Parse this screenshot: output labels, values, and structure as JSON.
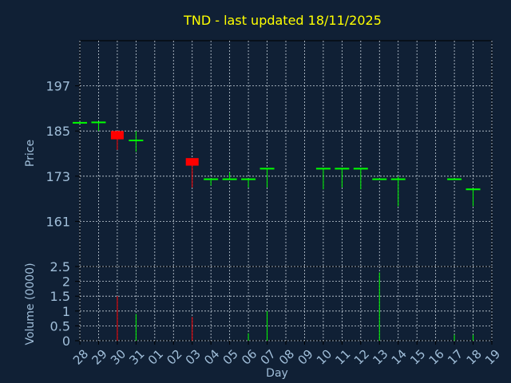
{
  "chart_data": [
    {
      "type": "candlestick",
      "title": "TND - last updated 18/11/2025",
      "xlabel": "Day",
      "ylabel": "Price",
      "grid": true,
      "ylim": [
        149,
        209
      ],
      "yticks": [
        161,
        173,
        185,
        197
      ],
      "categories": [
        "28",
        "29",
        "30",
        "31",
        "01",
        "02",
        "03",
        "04",
        "05",
        "06",
        "07",
        "08",
        "09",
        "10",
        "11",
        "12",
        "13",
        "14",
        "15",
        "16",
        "17",
        "18",
        "19"
      ],
      "candles": [
        {
          "day": "28",
          "open": 187.2,
          "high": 187.2,
          "low": 187.2,
          "close": 187.2
        },
        {
          "day": "29",
          "open": 187.3,
          "high": 187.3,
          "low": 185.0,
          "close": 187.3
        },
        {
          "day": "30",
          "open": 185.0,
          "high": 185.0,
          "low": 180.0,
          "close": 182.8
        },
        {
          "day": "31",
          "open": 182.5,
          "high": 185.0,
          "low": 179.5,
          "close": 182.5
        },
        {
          "day": "03",
          "open": 177.8,
          "high": 177.8,
          "low": 170.0,
          "close": 175.8
        },
        {
          "day": "04",
          "open": 172.2,
          "high": 172.2,
          "low": 170.5,
          "close": 172.2
        },
        {
          "day": "05",
          "open": 172.2,
          "high": 174.0,
          "low": 172.2,
          "close": 172.2
        },
        {
          "day": "06",
          "open": 172.2,
          "high": 172.2,
          "low": 170.0,
          "close": 172.2
        },
        {
          "day": "07",
          "open": 175.0,
          "high": 175.0,
          "low": 170.0,
          "close": 175.0
        },
        {
          "day": "10",
          "open": 175.0,
          "high": 175.0,
          "low": 169.5,
          "close": 175.0
        },
        {
          "day": "11",
          "open": 175.0,
          "high": 175.0,
          "low": 170.0,
          "close": 175.0
        },
        {
          "day": "12",
          "open": 175.0,
          "high": 175.0,
          "low": 169.5,
          "close": 175.0
        },
        {
          "day": "13",
          "open": 172.2,
          "high": 172.2,
          "low": 172.2,
          "close": 172.2
        },
        {
          "day": "14",
          "open": 172.2,
          "high": 173.0,
          "low": 165.0,
          "close": 172.2
        },
        {
          "day": "17",
          "open": 172.2,
          "high": 172.2,
          "low": 172.2,
          "close": 172.2
        },
        {
          "day": "18",
          "open": 169.5,
          "high": 169.5,
          "low": 165.0,
          "close": 169.5
        }
      ]
    },
    {
      "type": "bar",
      "xlabel": "Day",
      "ylabel": "Volume (0000)",
      "grid": true,
      "ylim": [
        0,
        2.5
      ],
      "yticks": [
        "0",
        "0.5",
        "1",
        "1.5",
        "2",
        "2.5"
      ],
      "categories": [
        "28",
        "29",
        "30",
        "31",
        "01",
        "02",
        "03",
        "04",
        "05",
        "06",
        "07",
        "08",
        "09",
        "10",
        "11",
        "12",
        "13",
        "14",
        "15",
        "16",
        "17",
        "18",
        "19"
      ],
      "values": [
        {
          "day": "30",
          "volume": 1.5,
          "direction": "down"
        },
        {
          "day": "31",
          "volume": 0.9,
          "direction": "up"
        },
        {
          "day": "03",
          "volume": 0.8,
          "direction": "down"
        },
        {
          "day": "06",
          "volume": 0.25,
          "direction": "up"
        },
        {
          "day": "07",
          "volume": 1.0,
          "direction": "up"
        },
        {
          "day": "13",
          "volume": 2.3,
          "direction": "up"
        },
        {
          "day": "17",
          "volume": 0.2,
          "direction": "up"
        },
        {
          "day": "18",
          "volume": 0.2,
          "direction": "up"
        }
      ]
    }
  ],
  "colors": {
    "background": "#102035",
    "axis": "#000000",
    "grid": "#c8d2dc",
    "text": "#a0bed9",
    "title": "#ffff00",
    "up": "#00ff00",
    "down": "#ff0000"
  }
}
